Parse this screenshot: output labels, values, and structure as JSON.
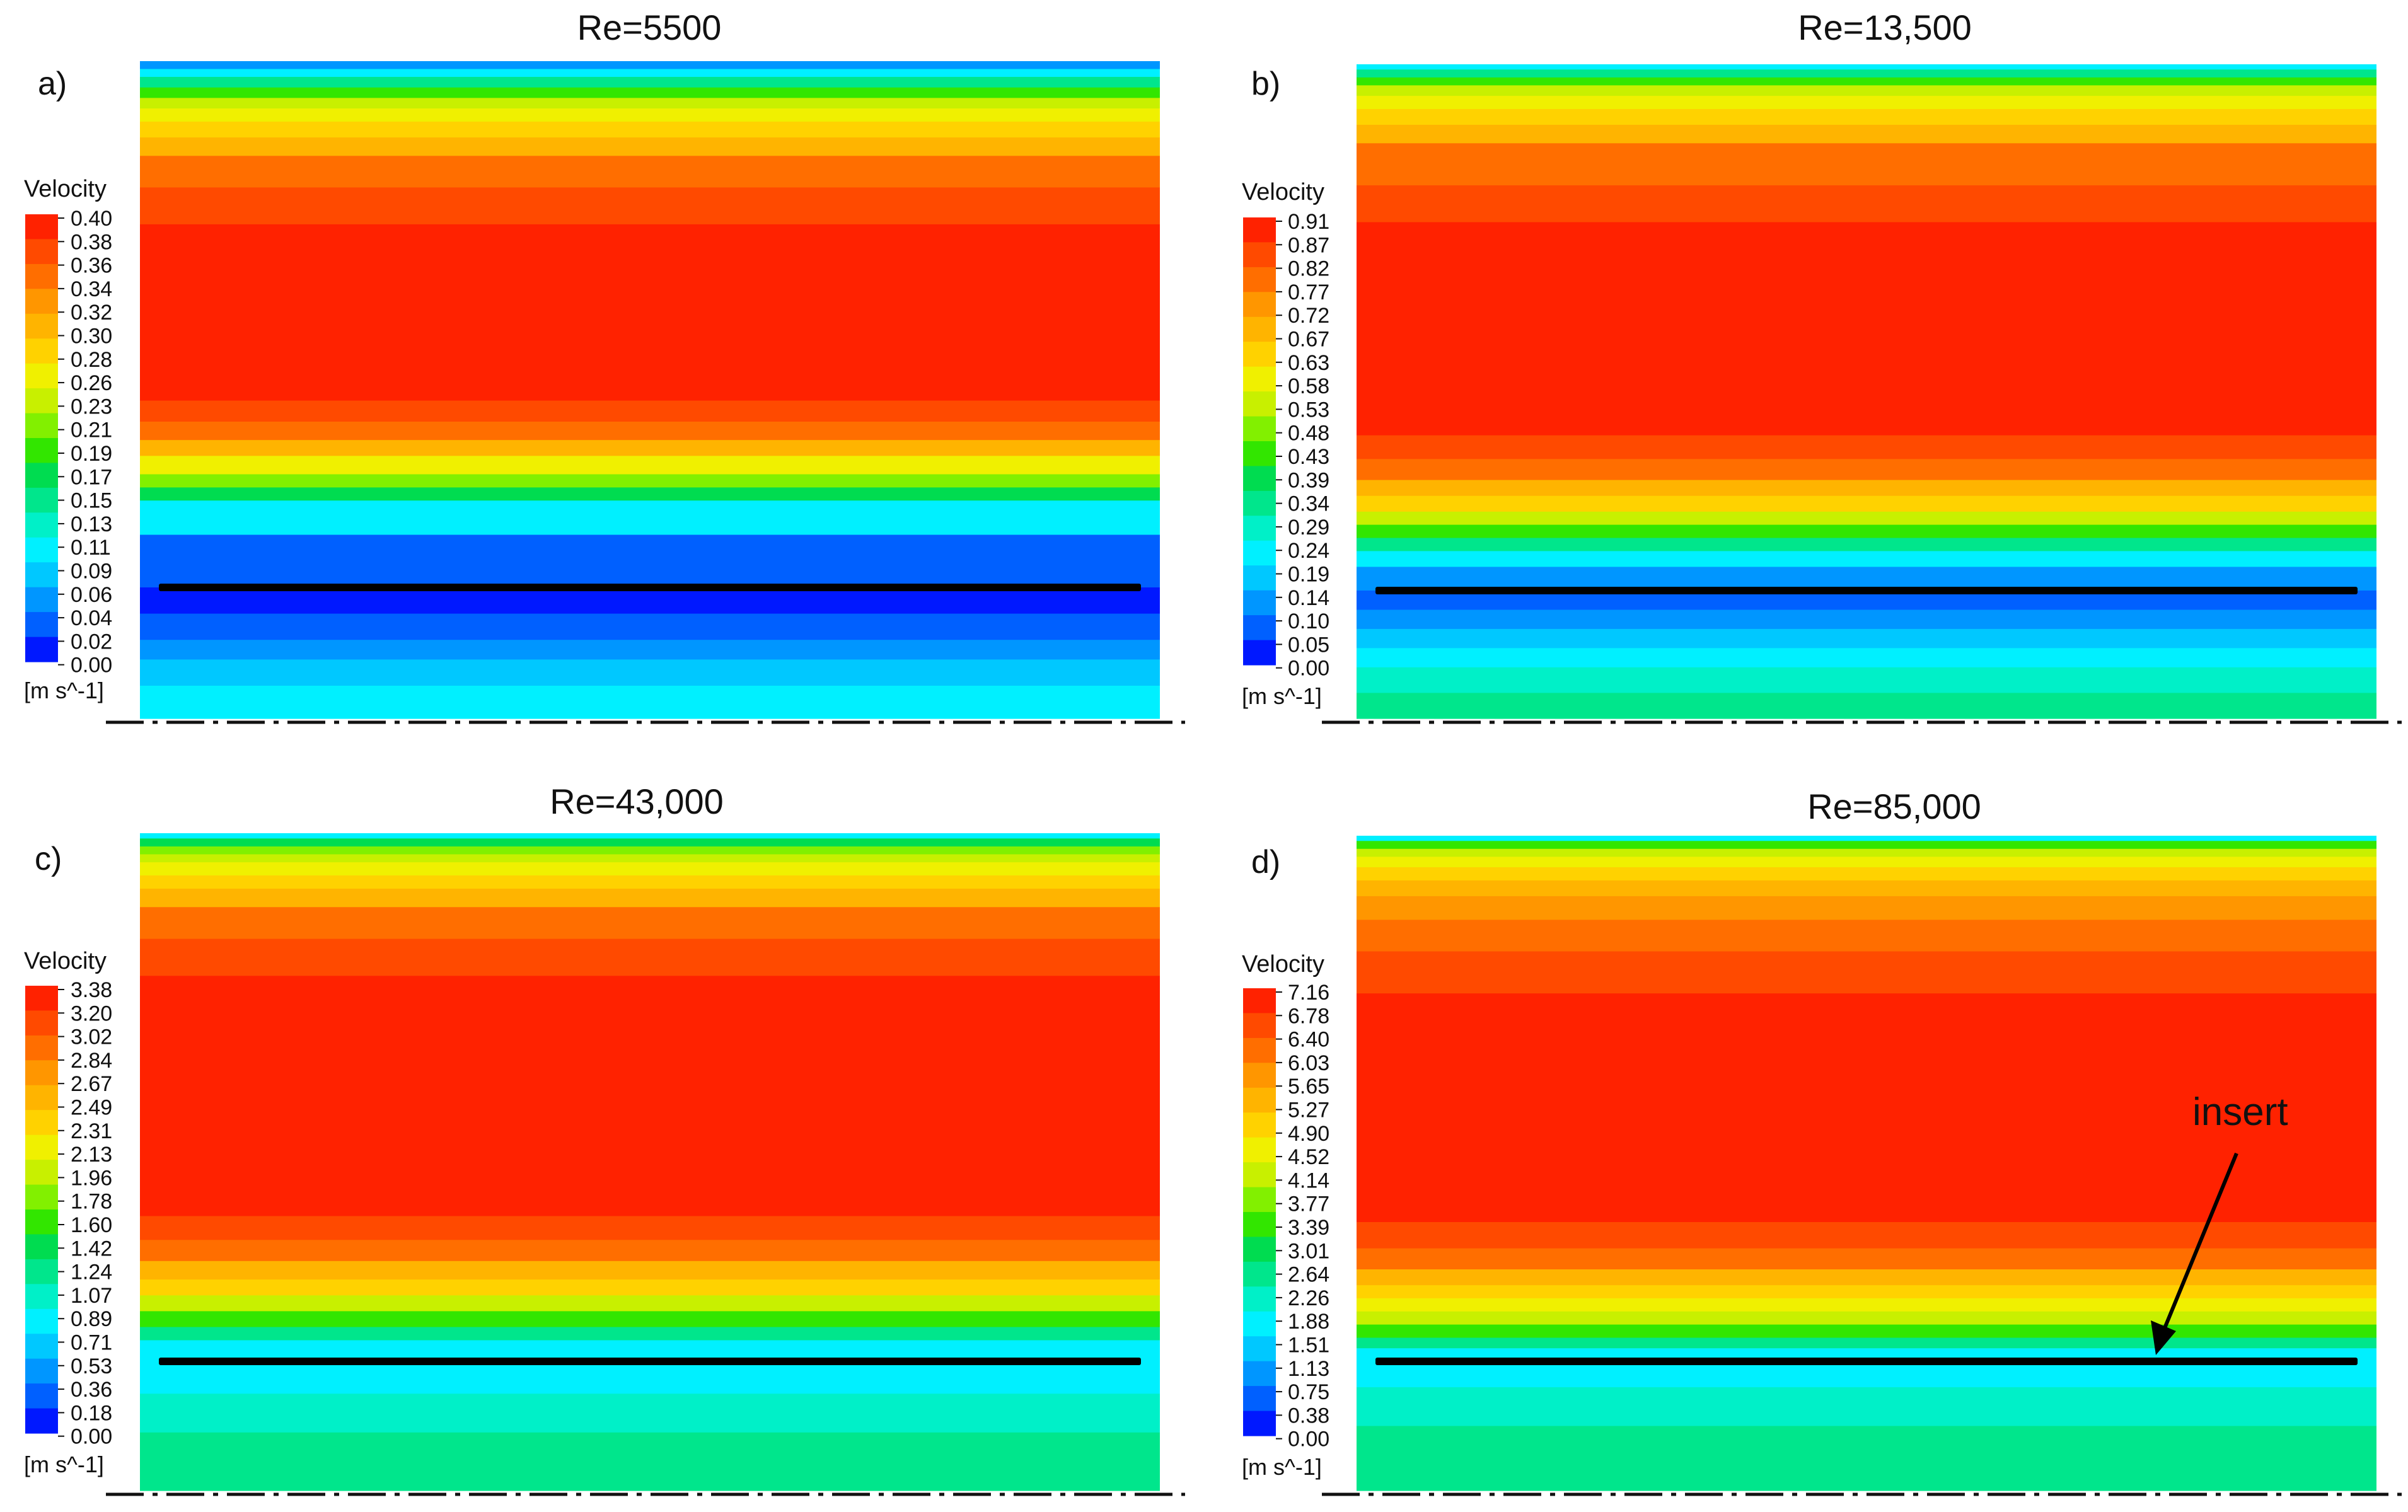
{
  "figure": {
    "colormap": [
      "#0018ff",
      "#0060ff",
      "#0096ff",
      "#00c8ff",
      "#00f0ff",
      "#00f0c8",
      "#00e68c",
      "#00dc50",
      "#32e600",
      "#82f000",
      "#c8f000",
      "#f0f000",
      "#ffd200",
      "#ffb400",
      "#ff9600",
      "#ff6e00",
      "#ff4a00",
      "#ff2200"
    ],
    "axis_line_color": "#111111",
    "insert_color": "#000000",
    "panels": [
      {
        "id": "a",
        "letter": "a)",
        "title": "Re=5500",
        "legend_title": "Velocity",
        "units": "[m s^-1]",
        "ticks": [
          "0.40",
          "0.38",
          "0.36",
          "0.34",
          "0.32",
          "0.30",
          "0.28",
          "0.26",
          "0.23",
          "0.21",
          "0.19",
          "0.17",
          "0.15",
          "0.13",
          "0.11",
          "0.09",
          "0.06",
          "0.04",
          "0.02",
          "0.00"
        ],
        "bands_above": [
          [
            0.0,
            2
          ],
          [
            0.015,
            4
          ],
          [
            0.03,
            6
          ],
          [
            0.05,
            8
          ],
          [
            0.07,
            10
          ],
          [
            0.09,
            11
          ],
          [
            0.115,
            12
          ],
          [
            0.145,
            13
          ],
          [
            0.18,
            15
          ],
          [
            0.24,
            16
          ],
          [
            0.31,
            17
          ],
          [
            0.645,
            16
          ],
          [
            0.685,
            15
          ],
          [
            0.72,
            13
          ],
          [
            0.75,
            11
          ],
          [
            0.785,
            9
          ],
          [
            0.81,
            7
          ],
          [
            0.835,
            4
          ],
          [
            0.9,
            1
          ]
        ],
        "bands_below": [
          [
            0.0,
            0
          ],
          [
            0.2,
            1
          ],
          [
            0.4,
            2
          ],
          [
            0.55,
            3
          ],
          [
            0.75,
            4
          ]
        ]
      },
      {
        "id": "b",
        "letter": "b)",
        "title": "Re=13,500",
        "legend_title": "Velocity",
        "units": "[m s^-1]",
        "ticks": [
          "0.91",
          "0.87",
          "0.82",
          "0.77",
          "0.72",
          "0.67",
          "0.63",
          "0.58",
          "0.53",
          "0.48",
          "0.43",
          "0.39",
          "0.34",
          "0.29",
          "0.24",
          "0.19",
          "0.14",
          "0.10",
          "0.05",
          "0.00"
        ],
        "bands_above": [
          [
            0.0,
            4
          ],
          [
            0.01,
            6
          ],
          [
            0.025,
            8
          ],
          [
            0.04,
            10
          ],
          [
            0.06,
            11
          ],
          [
            0.085,
            12
          ],
          [
            0.115,
            13
          ],
          [
            0.15,
            15
          ],
          [
            0.23,
            16
          ],
          [
            0.3,
            17
          ],
          [
            0.705,
            16
          ],
          [
            0.75,
            15
          ],
          [
            0.79,
            13
          ],
          [
            0.82,
            12
          ],
          [
            0.85,
            10
          ],
          [
            0.875,
            8
          ],
          [
            0.9,
            6
          ],
          [
            0.925,
            4
          ],
          [
            0.955,
            2
          ]
        ],
        "bands_below": [
          [
            0.0,
            1
          ],
          [
            0.15,
            2
          ],
          [
            0.3,
            3
          ],
          [
            0.45,
            4
          ],
          [
            0.6,
            5
          ],
          [
            0.8,
            6
          ]
        ]
      },
      {
        "id": "c",
        "letter": "c)",
        "title": "Re=43,000",
        "legend_title": "Velocity",
        "units": "[m s^-1]",
        "ticks": [
          "3.38",
          "3.20",
          "3.02",
          "2.84",
          "2.67",
          "2.49",
          "2.31",
          "2.13",
          "1.96",
          "1.78",
          "1.60",
          "1.42",
          "1.24",
          "1.07",
          "0.89",
          "0.71",
          "0.53",
          "0.36",
          "0.18",
          "0.00"
        ],
        "bands_above": [
          [
            0.0,
            4
          ],
          [
            0.01,
            7
          ],
          [
            0.025,
            9
          ],
          [
            0.04,
            10
          ],
          [
            0.055,
            11
          ],
          [
            0.08,
            12
          ],
          [
            0.105,
            13
          ],
          [
            0.14,
            15
          ],
          [
            0.2,
            16
          ],
          [
            0.27,
            17
          ],
          [
            0.725,
            16
          ],
          [
            0.77,
            15
          ],
          [
            0.81,
            13
          ],
          [
            0.845,
            12
          ],
          [
            0.875,
            10
          ],
          [
            0.905,
            8
          ],
          [
            0.935,
            6
          ],
          [
            0.96,
            4
          ]
        ],
        "bands_below": [
          [
            0.0,
            4
          ],
          [
            0.25,
            5
          ],
          [
            0.55,
            6
          ]
        ]
      },
      {
        "id": "d",
        "letter": "d)",
        "title": "Re=85,000",
        "legend_title": "Velocity",
        "units": "[m s^-1]",
        "ticks": [
          "7.16",
          "6.78",
          "6.40",
          "6.03",
          "5.65",
          "5.27",
          "4.90",
          "4.52",
          "4.14",
          "3.77",
          "3.39",
          "3.01",
          "2.64",
          "2.26",
          "1.88",
          "1.51",
          "1.13",
          "0.75",
          "0.38",
          "0.00"
        ],
        "bands_above": [
          [
            0.0,
            4
          ],
          [
            0.01,
            8
          ],
          [
            0.025,
            10
          ],
          [
            0.04,
            11
          ],
          [
            0.06,
            12
          ],
          [
            0.085,
            13
          ],
          [
            0.115,
            14
          ],
          [
            0.16,
            15
          ],
          [
            0.22,
            16
          ],
          [
            0.3,
            17
          ],
          [
            0.735,
            16
          ],
          [
            0.785,
            15
          ],
          [
            0.825,
            13
          ],
          [
            0.855,
            12
          ],
          [
            0.88,
            11
          ],
          [
            0.905,
            10
          ],
          [
            0.93,
            8
          ],
          [
            0.955,
            6
          ],
          [
            0.975,
            4
          ]
        ],
        "bands_below": [
          [
            0.0,
            4
          ],
          [
            0.2,
            5
          ],
          [
            0.5,
            6
          ]
        ]
      }
    ],
    "annotation": {
      "panel": "d",
      "label": "insert"
    }
  }
}
